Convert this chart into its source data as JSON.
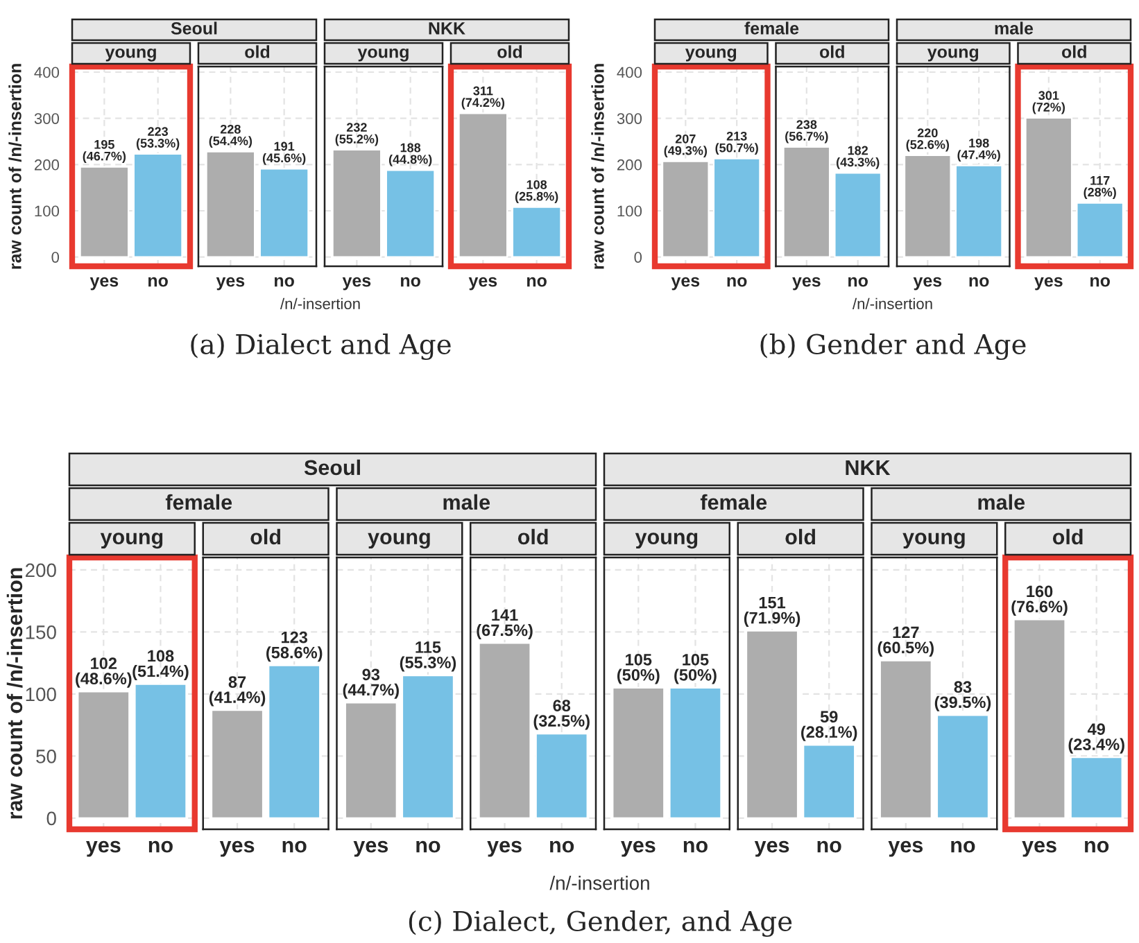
{
  "chart_data": [
    {
      "type": "bar",
      "title": "young",
      "annotations": [
        "(a) Dialect and Age",
        "Seoul"
      ],
      "xlabel": "/n/-insertion",
      "ylabel": "raw count of /n/-insertion",
      "categories": [
        "yes",
        "no"
      ],
      "values": [
        195,
        223
      ],
      "value_labels": [
        "195\n(46.7%)",
        "223\n(53.3%)"
      ],
      "colors": [
        "#adadad",
        "#76c1e5"
      ],
      "ylim": [
        -20,
        412
      ],
      "yticks": [
        0,
        100,
        200,
        300,
        400
      ],
      "grid": true
    },
    {
      "type": "bar",
      "title": "old",
      "categories": [
        "yes",
        "no"
      ],
      "values": [
        228,
        191
      ],
      "value_labels": [
        "228\n(54.4%)",
        "191\n(45.6%)"
      ],
      "colors": [
        "#adadad",
        "#76c1e5"
      ],
      "ylim": [
        -20,
        412
      ],
      "yticks": [
        0,
        100,
        200,
        300,
        400
      ],
      "grid": true,
      "tick_labels": "x"
    },
    {
      "type": "bar",
      "title": "young",
      "annotations": [
        "NKK"
      ],
      "categories": [
        "yes",
        "no"
      ],
      "values": [
        232,
        188
      ],
      "value_labels": [
        "232\n(55.2%)",
        "188\n(44.8%)"
      ],
      "colors": [
        "#adadad",
        "#76c1e5"
      ],
      "ylim": [
        -20,
        412
      ],
      "yticks": [
        0,
        100,
        200,
        300,
        400
      ],
      "grid": true,
      "tick_labels": "x"
    },
    {
      "type": "bar",
      "title": "old",
      "categories": [
        "yes",
        "no"
      ],
      "values": [
        311,
        108
      ],
      "value_labels": [
        "311\n(74.2%)",
        "108\n(25.8%)"
      ],
      "colors": [
        "#adadad",
        "#76c1e5"
      ],
      "ylim": [
        -20,
        412
      ],
      "yticks": [
        0,
        100,
        200,
        300,
        400
      ],
      "grid": true,
      "tick_labels": "x"
    },
    {
      "type": "bar",
      "title": "young",
      "annotations": [
        "(b) Gender and Age",
        "female"
      ],
      "xlabel": "/n/-insertion",
      "ylabel": "raw count of /n/-insertion",
      "categories": [
        "yes",
        "no"
      ],
      "values": [
        207,
        213
      ],
      "value_labels": [
        "207\n(49.3%)",
        "213\n(50.7%)"
      ],
      "colors": [
        "#adadad",
        "#76c1e5"
      ],
      "ylim": [
        -20,
        412
      ],
      "yticks": [
        0,
        100,
        200,
        300,
        400
      ],
      "grid": true
    },
    {
      "type": "bar",
      "title": "old",
      "categories": [
        "yes",
        "no"
      ],
      "values": [
        238,
        182
      ],
      "value_labels": [
        "238\n(56.7%)",
        "182\n(43.3%)"
      ],
      "colors": [
        "#adadad",
        "#76c1e5"
      ],
      "ylim": [
        -20,
        412
      ],
      "yticks": [
        0,
        100,
        200,
        300,
        400
      ],
      "grid": true,
      "tick_labels": "x"
    },
    {
      "type": "bar",
      "title": "young",
      "annotations": [
        "male"
      ],
      "categories": [
        "yes",
        "no"
      ],
      "values": [
        220,
        198
      ],
      "value_labels": [
        "220\n(52.6%)",
        "198\n(47.4%)"
      ],
      "colors": [
        "#adadad",
        "#76c1e5"
      ],
      "ylim": [
        -20,
        412
      ],
      "yticks": [
        0,
        100,
        200,
        300,
        400
      ],
      "grid": true,
      "tick_labels": "x"
    },
    {
      "type": "bar",
      "title": "old",
      "categories": [
        "yes",
        "no"
      ],
      "values": [
        301,
        117
      ],
      "value_labels": [
        "301\n(72%)",
        "117\n(28%)"
      ],
      "colors": [
        "#adadad",
        "#76c1e5"
      ],
      "ylim": [
        -20,
        412
      ],
      "yticks": [
        0,
        100,
        200,
        300,
        400
      ],
      "grid": true,
      "tick_labels": "x"
    },
    {
      "type": "bar",
      "title": "young",
      "annotations": [
        "(c) Dialect, Gender, and Age",
        "Seoul",
        "female"
      ],
      "ylabel": "raw count of /n/-insertion",
      "categories": [
        "yes",
        "no"
      ],
      "values": [
        102,
        108
      ],
      "value_labels": [
        "102\n(48.6%)",
        "108\n(51.4%)"
      ],
      "colors": [
        "#adadad",
        "#76c1e5"
      ],
      "ylim": [
        -9,
        210
      ],
      "yticks": [
        0,
        50,
        100,
        150,
        200
      ],
      "grid": true
    },
    {
      "type": "bar",
      "title": "old",
      "categories": [
        "yes",
        "no"
      ],
      "values": [
        87,
        123
      ],
      "value_labels": [
        "87\n(41.4%)",
        "123\n(58.6%)"
      ],
      "colors": [
        "#adadad",
        "#76c1e5"
      ],
      "ylim": [
        -9,
        210
      ],
      "yticks": [
        0,
        50,
        100,
        150,
        200
      ],
      "grid": true,
      "tick_labels": "x"
    },
    {
      "type": "bar",
      "title": "young",
      "annotations": [
        "male"
      ],
      "categories": [
        "yes",
        "no"
      ],
      "values": [
        93,
        115
      ],
      "value_labels": [
        "93\n(44.7%)",
        "115\n(55.3%)"
      ],
      "colors": [
        "#adadad",
        "#76c1e5"
      ],
      "ylim": [
        -9,
        210
      ],
      "yticks": [
        0,
        50,
        100,
        150,
        200
      ],
      "grid": true,
      "tick_labels": "x"
    },
    {
      "type": "bar",
      "title": "old",
      "categories": [
        "yes",
        "no"
      ],
      "values": [
        141,
        68
      ],
      "value_labels": [
        "141\n(67.5%)",
        "68\n(32.5%)"
      ],
      "colors": [
        "#adadad",
        "#76c1e5"
      ],
      "ylim": [
        -9,
        210
      ],
      "yticks": [
        0,
        50,
        100,
        150,
        200
      ],
      "grid": true,
      "tick_labels": "x"
    },
    {
      "type": "bar",
      "title": "young",
      "annotations": [
        "NKK",
        "female"
      ],
      "xlabel": "/n/-insertion",
      "categories": [
        "yes",
        "no"
      ],
      "values": [
        105,
        105
      ],
      "value_labels": [
        "105\n(50%)",
        "105\n(50%)"
      ],
      "colors": [
        "#adadad",
        "#76c1e5"
      ],
      "ylim": [
        -9,
        210
      ],
      "yticks": [
        0,
        50,
        100,
        150,
        200
      ],
      "grid": true,
      "tick_labels": "x"
    },
    {
      "type": "bar",
      "title": "old",
      "categories": [
        "yes",
        "no"
      ],
      "values": [
        151,
        59
      ],
      "value_labels": [
        "151\n(71.9%)",
        "59\n(28.1%)"
      ],
      "colors": [
        "#adadad",
        "#76c1e5"
      ],
      "ylim": [
        -9,
        210
      ],
      "yticks": [
        0,
        50,
        100,
        150,
        200
      ],
      "grid": true,
      "tick_labels": "x"
    },
    {
      "type": "bar",
      "title": "young",
      "annotations": [
        "male"
      ],
      "categories": [
        "yes",
        "no"
      ],
      "values": [
        127,
        83
      ],
      "value_labels": [
        "127\n(60.5%)",
        "83\n(39.5%)"
      ],
      "colors": [
        "#adadad",
        "#76c1e5"
      ],
      "ylim": [
        -9,
        210
      ],
      "yticks": [
        0,
        50,
        100,
        150,
        200
      ],
      "grid": true,
      "tick_labels": "x"
    },
    {
      "type": "bar",
      "title": "old",
      "categories": [
        "yes",
        "no"
      ],
      "values": [
        160,
        49
      ],
      "value_labels": [
        "160\n(76.6%)",
        "49\n(23.4%)"
      ],
      "colors": [
        "#adadad",
        "#76c1e5"
      ],
      "ylim": [
        -9,
        210
      ],
      "yticks": [
        0,
        50,
        100,
        150,
        200
      ],
      "grid": true,
      "tick_labels": "x"
    }
  ]
}
